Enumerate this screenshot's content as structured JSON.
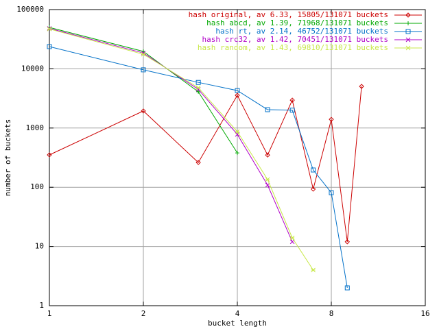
{
  "chart_data": {
    "type": "line",
    "xlabel": "bucket length",
    "ylabel": "number of buckets",
    "xscale": "log",
    "yscale": "log",
    "xlim": [
      1,
      16
    ],
    "ylim": [
      1,
      100000
    ],
    "xticks": [
      1,
      2,
      4,
      8,
      16
    ],
    "yticks": [
      1,
      10,
      100,
      1000,
      10000,
      100000
    ],
    "grid": true,
    "legend": "top-right",
    "series": [
      {
        "name": "hash original, av 6.33, 15805/131071 buckets",
        "color": "#cc0000",
        "marker": "diamond",
        "x": [
          1,
          2,
          3,
          4,
          5,
          6,
          7,
          8,
          9,
          10
        ],
        "values": [
          352,
          1940,
          262,
          3570,
          350,
          2960,
          93,
          1400,
          12,
          5050
        ]
      },
      {
        "name": "hash abcd, av 1.39, 71968/131071 buckets",
        "color": "#00a800",
        "marker": "plus",
        "x": [
          1,
          2,
          3,
          4
        ],
        "values": [
          50000,
          19700,
          4100,
          380
        ]
      },
      {
        "name": "hash rt, av 2.14, 46752/131071 buckets",
        "color": "#0070c8",
        "marker": "square",
        "x": [
          1,
          2,
          3,
          4,
          5,
          6,
          7,
          8,
          9
        ],
        "values": [
          23700,
          9600,
          5900,
          4300,
          2040,
          2000,
          196,
          81,
          2
        ]
      },
      {
        "name": "hash crc32, av 1.42, 70451/131071 buckets",
        "color": "#b000c8",
        "marker": "cross",
        "x": [
          1,
          2,
          3,
          4,
          5,
          6
        ],
        "values": [
          48000,
          18500,
          4500,
          780,
          109,
          12
        ]
      },
      {
        "name": "hash random, av 1.43, 69810/131071 buckets",
        "color": "#c8e848",
        "marker": "star",
        "x": [
          1,
          2,
          3,
          4,
          5,
          6,
          7
        ],
        "values": [
          47000,
          17600,
          4800,
          870,
          135,
          14,
          4
        ]
      }
    ]
  }
}
